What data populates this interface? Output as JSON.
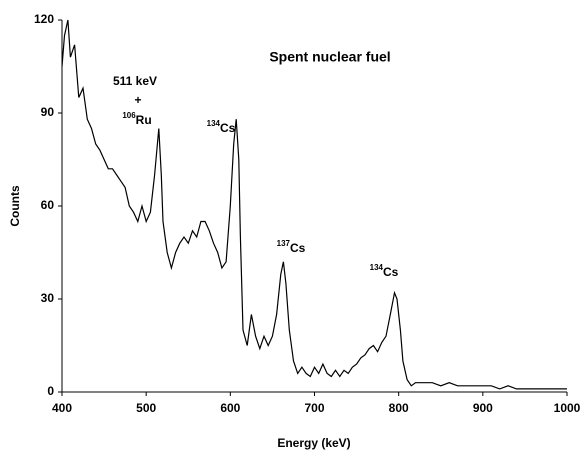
{
  "chart_data": {
    "type": "line",
    "x_label": "Energy (keV)",
    "y_label": "Counts",
    "xlim": [
      400,
      1000
    ],
    "ylim": [
      0,
      120
    ],
    "xticks": [
      400,
      500,
      600,
      700,
      800,
      900,
      1000
    ],
    "yticks": [
      0,
      30,
      60,
      90,
      120
    ],
    "grid": false,
    "annotations": [
      {
        "text": "Spent nuclear fuel"
      },
      {
        "text": "511 keV"
      },
      {
        "text": "+"
      },
      {
        "sup": "106",
        "text": "Ru"
      },
      {
        "sup": "134",
        "text": "Cs"
      },
      {
        "sup": "137",
        "text": "Cs"
      },
      {
        "sup": "134",
        "text": "Cs"
      }
    ],
    "series": [
      {
        "color": "#000000",
        "x": [
          400,
          403,
          407,
          410,
          415,
          420,
          425,
          430,
          435,
          440,
          445,
          450,
          455,
          460,
          465,
          470,
          475,
          480,
          485,
          490,
          495,
          500,
          505,
          510,
          515,
          518,
          520,
          525,
          530,
          535,
          540,
          545,
          550,
          555,
          560,
          565,
          570,
          575,
          580,
          585,
          590,
          595,
          600,
          604,
          607,
          610,
          612,
          615,
          620,
          625,
          630,
          635,
          640,
          645,
          650,
          655,
          660,
          663,
          666,
          670,
          675,
          680,
          685,
          690,
          695,
          700,
          705,
          710,
          715,
          720,
          725,
          730,
          735,
          740,
          745,
          750,
          755,
          760,
          765,
          770,
          775,
          780,
          785,
          790,
          795,
          798,
          802,
          805,
          810,
          815,
          820,
          830,
          840,
          850,
          860,
          870,
          880,
          890,
          900,
          910,
          920,
          930,
          940,
          950,
          960,
          970,
          980,
          990,
          1000
        ],
        "values": [
          105,
          115,
          120,
          108,
          112,
          95,
          98,
          88,
          85,
          80,
          78,
          75,
          72,
          72,
          70,
          68,
          66,
          60,
          58,
          55,
          60,
          55,
          58,
          70,
          85,
          70,
          55,
          45,
          40,
          45,
          48,
          50,
          48,
          52,
          50,
          55,
          55,
          52,
          48,
          45,
          40,
          42,
          60,
          80,
          88,
          75,
          50,
          20,
          15,
          25,
          18,
          14,
          18,
          15,
          18,
          25,
          38,
          42,
          35,
          20,
          10,
          6,
          8,
          6,
          5,
          8,
          6,
          9,
          6,
          5,
          7,
          5,
          7,
          6,
          8,
          9,
          11,
          12,
          14,
          15,
          13,
          16,
          18,
          25,
          32,
          30,
          20,
          10,
          4,
          2,
          3,
          3,
          3,
          2,
          3,
          2,
          2,
          2,
          2,
          2,
          1,
          2,
          1,
          1,
          1,
          1,
          1,
          1,
          1
        ]
      }
    ]
  }
}
